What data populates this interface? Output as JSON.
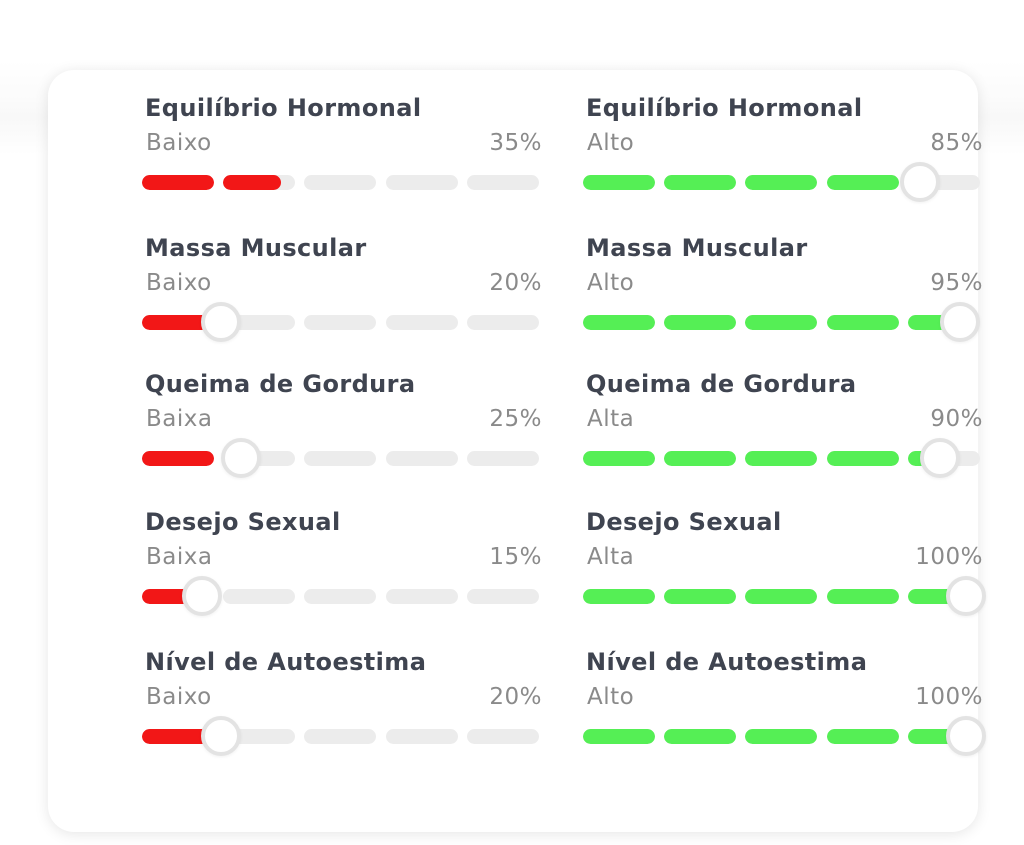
{
  "accent": {
    "low": "#f21717",
    "high": "#55ef55",
    "track": "#ececec"
  },
  "left": [
    {
      "title": "Equilíbrio Hormonal",
      "level": "Baixo",
      "pct": "35%",
      "value": 0.35,
      "knob": false
    },
    {
      "title": "Massa Muscular",
      "level": "Baixo",
      "pct": "20%",
      "value": 0.2,
      "knob": true
    },
    {
      "title": "Queima de Gordura",
      "level": "Baixa",
      "pct": "25%",
      "value": 0.25,
      "knob": true
    },
    {
      "title": "Desejo Sexual",
      "level": "Baixa",
      "pct": "15%",
      "value": 0.15,
      "knob": true
    },
    {
      "title": "Nível de Autoestima",
      "level": "Baixo",
      "pct": "20%",
      "value": 0.2,
      "knob": true
    }
  ],
  "right": [
    {
      "title": "Equilíbrio Hormonal",
      "level": "Alto",
      "pct": "85%",
      "value": 0.85,
      "knob": true
    },
    {
      "title": "Massa Muscular",
      "level": "Alto",
      "pct": "95%",
      "value": 0.95,
      "knob": true
    },
    {
      "title": "Queima de Gordura",
      "level": "Alta",
      "pct": "90%",
      "value": 0.9,
      "knob": true
    },
    {
      "title": "Desejo Sexual",
      "level": "Alta",
      "pct": "100%",
      "value": 1.0,
      "knob": true
    },
    {
      "title": "Nível de Autoestima",
      "level": "Alto",
      "pct": "100%",
      "value": 1.0,
      "knob": true
    }
  ]
}
